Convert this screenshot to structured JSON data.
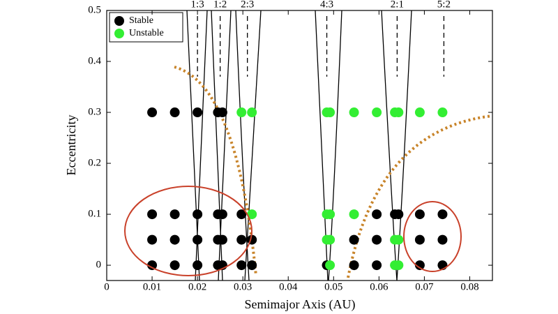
{
  "chart_data": {
    "type": "scatter",
    "xlabel": "Semimajor Axis (AU)",
    "ylabel": "Eccentricity",
    "xlim": [
      0,
      0.085
    ],
    "ylim": [
      -0.03,
      0.5
    ],
    "xticks": [
      0,
      0.01,
      0.02,
      0.03,
      0.04,
      0.05,
      0.06,
      0.07,
      0.08
    ],
    "yticks": [
      0,
      0.1,
      0.2,
      0.3,
      0.4,
      0.5
    ],
    "legend": "upper left",
    "resonances": [
      {
        "label": "1:3",
        "x": 0.02
      },
      {
        "label": "1:2",
        "x": 0.025
      },
      {
        "label": "2:3",
        "x": 0.031
      },
      {
        "label": "4:3",
        "x": 0.0485
      },
      {
        "label": "2:1",
        "x": 0.064
      },
      {
        "label": "5:2",
        "x": 0.0743
      }
    ],
    "series": [
      {
        "name": "Stable",
        "color": "#000000",
        "x": [
          0.01,
          0.015,
          0.02,
          0.0245,
          0.0255,
          0.01,
          0.015,
          0.02,
          0.0245,
          0.0255,
          0.0297,
          0.0595,
          0.0635,
          0.0643,
          0.069,
          0.074,
          0.01,
          0.015,
          0.02,
          0.0245,
          0.0255,
          0.0297,
          0.032,
          0.0545,
          0.0595,
          0.069,
          0.074,
          0.01,
          0.015,
          0.02,
          0.0245,
          0.0255,
          0.0297,
          0.032,
          0.0485,
          0.0545,
          0.0595,
          0.069,
          0.074
        ],
        "values": [
          0.3,
          0.3,
          0.3,
          0.3,
          0.3,
          0.1,
          0.1,
          0.1,
          0.1,
          0.1,
          0.1,
          0.1,
          0.1,
          0.1,
          0.1,
          0.1,
          0.05,
          0.05,
          0.05,
          0.05,
          0.05,
          0.05,
          0.05,
          0.05,
          0.05,
          0.05,
          0.05,
          0,
          0,
          0,
          0,
          0,
          0,
          0,
          0,
          0,
          0,
          0,
          0
        ]
      },
      {
        "name": "Unstable",
        "color": "#33ee33",
        "x": [
          0.0297,
          0.032,
          0.0485,
          0.0492,
          0.0545,
          0.0595,
          0.0635,
          0.0643,
          0.069,
          0.074,
          0.032,
          0.0485,
          0.0492,
          0.0545,
          0.0485,
          0.0492,
          0.0635,
          0.0643,
          0.0492,
          0.0635,
          0.0643
        ],
        "values": [
          0.3,
          0.3,
          0.3,
          0.3,
          0.3,
          0.3,
          0.3,
          0.3,
          0.3,
          0.3,
          0.1,
          0.1,
          0.1,
          0.1,
          0.05,
          0.05,
          0.05,
          0.05,
          0,
          0,
          0
        ]
      }
    ]
  }
}
